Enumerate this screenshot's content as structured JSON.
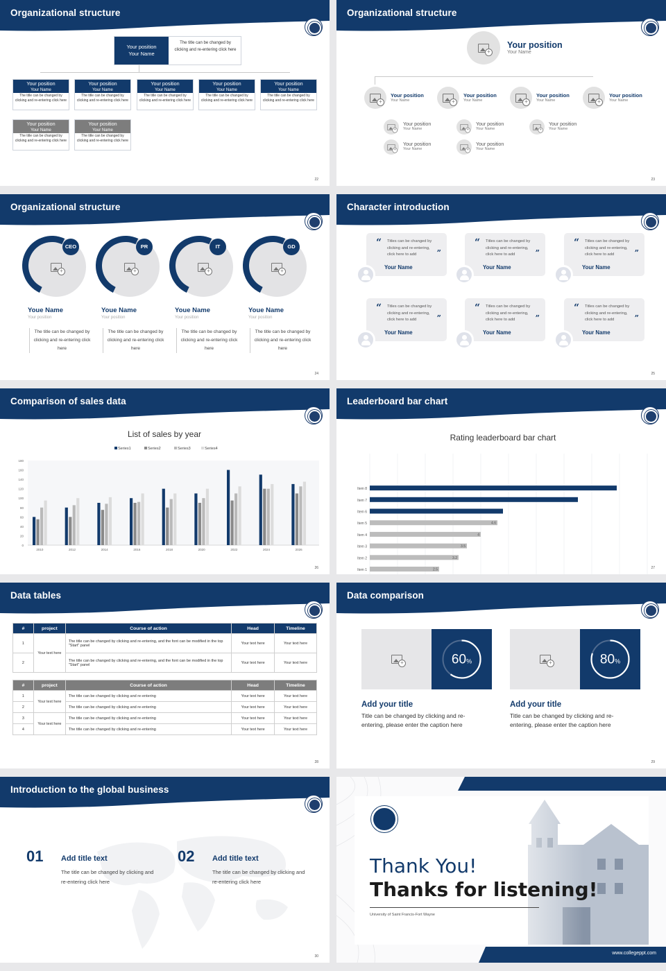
{
  "colors": {
    "navy": "#123a6b",
    "grey": "#7d7d7d",
    "light": "#e3e3e5",
    "bar_light": "#bcbcbc"
  },
  "slides": {
    "s22": {
      "title": "Organizational structure",
      "page": "22",
      "top": {
        "position": "Your position",
        "name": "Your Name",
        "desc": "The title can be changed by clicking and re-entering click here"
      },
      "box_pos": "Your position",
      "box_name": "Your Name",
      "box_text": "The title can be changed by clicking and re-entering click here"
    },
    "s23": {
      "title": "Organizational structure",
      "page": "23",
      "top_pos": "Your position",
      "top_name": "Your Name",
      "pos": "Your position",
      "name": "Your Name"
    },
    "s24": {
      "title": "Organizational structure",
      "page": "24",
      "execs": [
        {
          "badge": "CEO",
          "name": "Youe Name",
          "pos": "Your position",
          "text": "The title can be changed by clicking and re-entering click here"
        },
        {
          "badge": "PR",
          "name": "Youe Name",
          "pos": "Your position",
          "text": "The title can be changed by clicking and re-entering click here"
        },
        {
          "badge": "IT",
          "name": "Youe Name",
          "pos": "Your position",
          "text": "The title can be changed by clicking and re-entering click here"
        },
        {
          "badge": "GD",
          "name": "Youe Name",
          "pos": "Your position",
          "text": "The title can be changed by clicking and re-entering click here"
        }
      ]
    },
    "s25": {
      "title": "Character introduction",
      "page": "25",
      "card_text": "Titles can be changed by clicking and re-entering, click here to add",
      "card_name": "Your Name"
    },
    "s26": {
      "title": "Comparison of sales data",
      "page": "26"
    },
    "s27": {
      "title": "Leaderboard bar chart",
      "page": "27"
    },
    "s28": {
      "title": "Data tables",
      "page": "28",
      "head": [
        "#",
        "project",
        "Course of action",
        "Head",
        "Timeline"
      ],
      "t1_proj": "Your text here",
      "t1_rows": [
        {
          "n": "1",
          "text": "The title can be changed by clicking and re-entering, and the font can be modified in the top \"Start\" panel",
          "head": "Your text here",
          "time": "Your text here"
        },
        {
          "n": "2",
          "text": "The title can be changed by clicking and re-entering, and the font can be modified in the top \"Start\" panel",
          "head": "Your text here",
          "time": "Your text here"
        }
      ],
      "t2_proj": "Your text here",
      "t2_rows": [
        {
          "n": "1",
          "text": "The title can be changed by clicking and re-entering",
          "head": "Your text here",
          "time": "Your text here"
        },
        {
          "n": "2",
          "text": "The title can be changed by clicking and re-entering",
          "head": "Your text here",
          "time": "Your text here"
        },
        {
          "n": "3",
          "text": "The title can be changed by clicking and re-entering",
          "head": "Your text here",
          "time": "Your text here"
        },
        {
          "n": "4",
          "text": "The title can be changed by clicking and re-entering",
          "head": "Your text here",
          "time": "Your text here"
        }
      ]
    },
    "s29": {
      "title": "Data comparison",
      "page": "29",
      "items": [
        {
          "value": 60,
          "title": "Add your title",
          "text": "Title can be changed by clicking and re-entering, please enter the caption here"
        },
        {
          "value": 80,
          "title": "Add your title",
          "text": "Title can be changed by clicking and re-entering, please enter the caption here"
        }
      ]
    },
    "s30": {
      "title": "Introduction to the global business",
      "page": "30",
      "items": [
        {
          "num": "01",
          "title": "Add title text",
          "text": "The title can be changed by clicking and re-entering click here"
        },
        {
          "num": "02",
          "title": "Add title text",
          "text": "The title can be changed by clicking and re-entering click here"
        }
      ]
    },
    "s31": {
      "line1": "Thank You!",
      "line2": "Thanks for listening!",
      "university": "University of Saint Francis-Fort Wayne",
      "url": "www.collegeppt.com"
    }
  },
  "chart_data": [
    {
      "type": "bar",
      "title": "List of sales by year",
      "categories": [
        "2010",
        "2012",
        "2014",
        "2016",
        "2018",
        "2020",
        "2022",
        "2024",
        "2026"
      ],
      "ylim": [
        0,
        180
      ],
      "yticks": [
        0,
        20,
        40,
        60,
        80,
        100,
        120,
        140,
        160,
        180
      ],
      "legend": "top",
      "grid": false,
      "series": [
        {
          "name": "Series1",
          "color": "#123a6b",
          "values": [
            60,
            80,
            90,
            100,
            120,
            110,
            160,
            150,
            130
          ]
        },
        {
          "name": "Series2",
          "color": "#8a8a8a",
          "values": [
            55,
            60,
            75,
            90,
            80,
            90,
            95,
            120,
            110
          ]
        },
        {
          "name": "Series3",
          "color": "#b9b9b9",
          "values": [
            80,
            85,
            88,
            92,
            98,
            100,
            110,
            120,
            125
          ]
        },
        {
          "name": "Series4",
          "color": "#dcdcdc",
          "values": [
            95,
            100,
            102,
            110,
            110,
            120,
            125,
            130,
            135
          ]
        }
      ]
    },
    {
      "type": "bar",
      "orientation": "horizontal",
      "title": "Rating leaderboard bar chart",
      "categories": [
        "Item 1",
        "Item 2",
        "Item 3",
        "Item 4",
        "Item 5",
        "Item 6",
        "Item 7",
        "Item 8"
      ],
      "values": [
        2.5,
        3.2,
        3.5,
        4,
        4.6,
        4.8,
        7.5,
        8.9
      ],
      "labels": [
        "2.5",
        "3.2",
        "3.5",
        "4",
        "4.6",
        "",
        "",
        ""
      ],
      "xlim": [
        0,
        10
      ],
      "xticks": [
        "0",
        "1",
        "2",
        "3",
        "4",
        "5",
        "6",
        "7",
        "8",
        "9",
        "10"
      ],
      "grid": true
    }
  ]
}
